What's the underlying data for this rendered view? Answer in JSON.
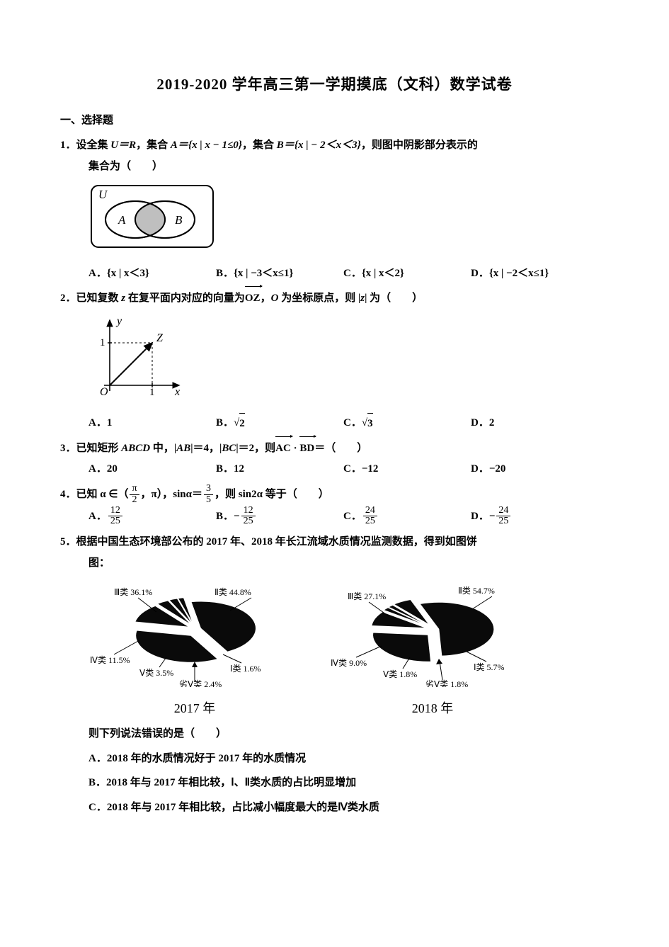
{
  "title": "2019-2020 学年高三第一学期摸底（文科）数学试卷",
  "section1": "一、选择题",
  "q1": {
    "num": "1．",
    "text_a": "设全集 ",
    "u_eq_r": "U＝R",
    "text_b": "，集合 ",
    "setA": "A＝{x | x − 1≤0}",
    "text_c": "，集合 ",
    "setB": "B＝{x | − 2＜x＜3}",
    "text_d": "，则图中阴影部分表示的",
    "text_e": "集合为（　　）",
    "venn": {
      "labelU": "U",
      "labelA": "A",
      "labelB": "B",
      "box_stroke": "#000000",
      "fill_shade": "#bfbfbf"
    },
    "opts": {
      "A": "A．{x | x＜3}",
      "B": "B．{x | −3＜x≤1}",
      "C": "C．{x | x＜2}",
      "D": "D．{x | −2＜x≤1}"
    }
  },
  "q2": {
    "num": "2．",
    "text_a": "已知复数 ",
    "z": "z",
    "text_b": " 在复平面内对应的向量为",
    "vec": "OZ",
    "text_c": "，",
    "O": "O",
    "text_d": " 为坐标原点，则 |",
    "z2": "z",
    "text_e": "| 为（　　）",
    "plot": {
      "xlabel": "x",
      "ylabel": "y",
      "O": "O",
      "Z": "Z",
      "tick1x": "1",
      "tick1y": "1",
      "stroke": "#000000"
    },
    "opts": {
      "A": "A．1",
      "B_pre": "B．",
      "B_rad": "2",
      "C_pre": "C．",
      "C_rad": "3",
      "D": "D．2"
    }
  },
  "q3": {
    "num": "3．",
    "text_a": "已知矩形 ",
    "rect": "ABCD",
    "text_b": " 中，|",
    "ab": "AB",
    "text_c": "|＝4，|",
    "bc": "BC",
    "text_d": "|＝2，则",
    "vec1": "AC",
    "dot": "·",
    "vec2": "BD",
    "text_e": "＝（　　）",
    "opts": {
      "A": "A．20",
      "B": "B．12",
      "C": "C．−12",
      "D": "D．−20"
    }
  },
  "q4": {
    "num": "4．",
    "text_a": "已知 α ∈（",
    "frac1_num": "π",
    "frac1_den": "2",
    "text_b": "，π），sinα＝",
    "frac2_num": "3",
    "frac2_den": "5",
    "text_c": "，则 sin2α 等于（　　）",
    "opts": {
      "A_pre": "A．",
      "A_num": "12",
      "A_den": "25",
      "B_pre": "B．−",
      "B_num": "12",
      "B_den": "25",
      "C_pre": "C．",
      "C_num": "24",
      "C_den": "25",
      "D_pre": "D．−",
      "D_num": "24",
      "D_den": "25"
    }
  },
  "q5": {
    "num": "5．",
    "text_a": "根据中国生态环境部公布的 2017 年、2018 年长江流域水质情况监测数据，得到如图饼",
    "text_b": "图：",
    "pie2017": {
      "year": "2017 年",
      "labels": {
        "III": "Ⅲ类 36.1%",
        "II": "Ⅱ类 44.8%",
        "IV": "Ⅳ类 11.5%",
        "V": "Ⅴ类 3.5%",
        "I": "Ⅰ类 1.6%",
        "bad": "劣Ⅴ类 2.4%"
      },
      "slices": {
        "II": {
          "start": -100,
          "end": 61,
          "color": "#0a0a0a"
        },
        "III": {
          "start": 61,
          "end": 191,
          "color": "#0a0a0a"
        },
        "IV": {
          "start": 191,
          "end": 232,
          "color": "#0a0a0a"
        },
        "V": {
          "start": 232,
          "end": 245,
          "color": "#0a0a0a"
        },
        "bad": {
          "start": 245,
          "end": 254,
          "color": "#0a0a0a"
        },
        "I": {
          "start": 254,
          "end": 260,
          "color": "#0a0a0a"
        }
      }
    },
    "pie2018": {
      "year": "2018 年",
      "labels": {
        "III": "Ⅲ类 27.1%",
        "II": "Ⅱ类 54.7%",
        "IV": "Ⅳ类 9.0%",
        "V": "Ⅴ类 1.8%",
        "I": "Ⅰ类 5.7%",
        "bad": "劣Ⅴ类 1.8%"
      },
      "slices": {
        "II": {
          "start": -110,
          "end": 87,
          "color": "#0a0a0a"
        },
        "III": {
          "start": 87,
          "end": 185,
          "color": "#0a0a0a"
        },
        "IV": {
          "start": 185,
          "end": 217,
          "color": "#0a0a0a"
        },
        "V": {
          "start": 217,
          "end": 224,
          "color": "#0a0a0a"
        },
        "bad": {
          "start": 224,
          "end": 230,
          "color": "#0a0a0a"
        },
        "I": {
          "start": 230,
          "end": 250,
          "color": "#0a0a0a"
        }
      }
    },
    "stem": "则下列说法错误的是（　　）",
    "optA": "A．2018 年的水质情况好于 2017 年的水质情况",
    "optB": "B．2018 年与 2017 年相比较，Ⅰ、Ⅱ类水质的占比明显增加",
    "optC": "C．2018 年与 2017 年相比较，占比减小幅度最大的是Ⅳ类水质"
  }
}
